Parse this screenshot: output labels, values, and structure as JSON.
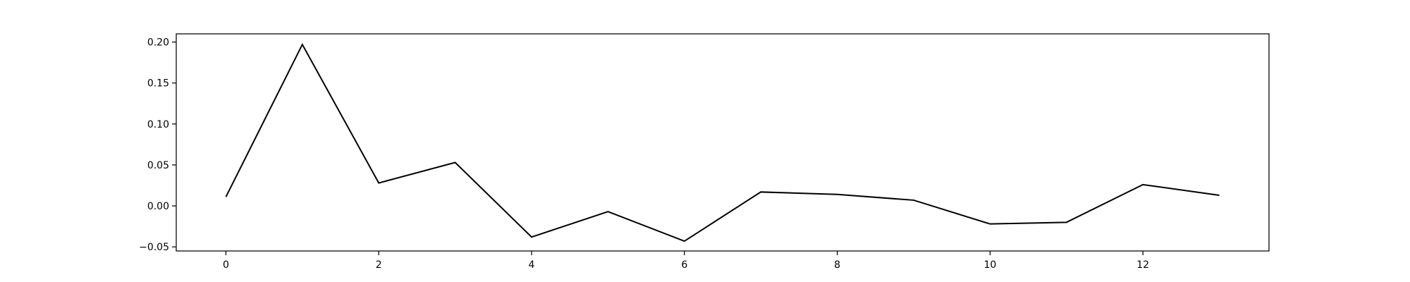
{
  "chart_data": {
    "type": "line",
    "title": "",
    "xlabel": "",
    "ylabel": "",
    "xlim": [
      -0.65,
      13.65
    ],
    "ylim": [
      -0.055,
      0.21
    ],
    "x_ticks": [
      0,
      2,
      4,
      6,
      8,
      10,
      12
    ],
    "x_tick_labels": [
      "0",
      "2",
      "4",
      "6",
      "8",
      "10",
      "12"
    ],
    "y_ticks": [
      -0.05,
      0.0,
      0.05,
      0.1,
      0.15,
      0.2
    ],
    "y_tick_labels": [
      "−0.05",
      "0.00",
      "0.05",
      "0.10",
      "0.15",
      "0.20"
    ],
    "grid": false,
    "legend": "none",
    "series": [
      {
        "color": "#000000",
        "x": [
          0,
          1,
          2,
          3,
          4,
          5,
          6,
          7,
          8,
          9,
          10,
          11,
          12,
          13
        ],
        "y": [
          0.011,
          0.197,
          0.028,
          0.053,
          -0.038,
          -0.007,
          -0.043,
          0.017,
          0.014,
          0.007,
          -0.022,
          -0.02,
          0.026,
          0.013
        ]
      }
    ]
  }
}
